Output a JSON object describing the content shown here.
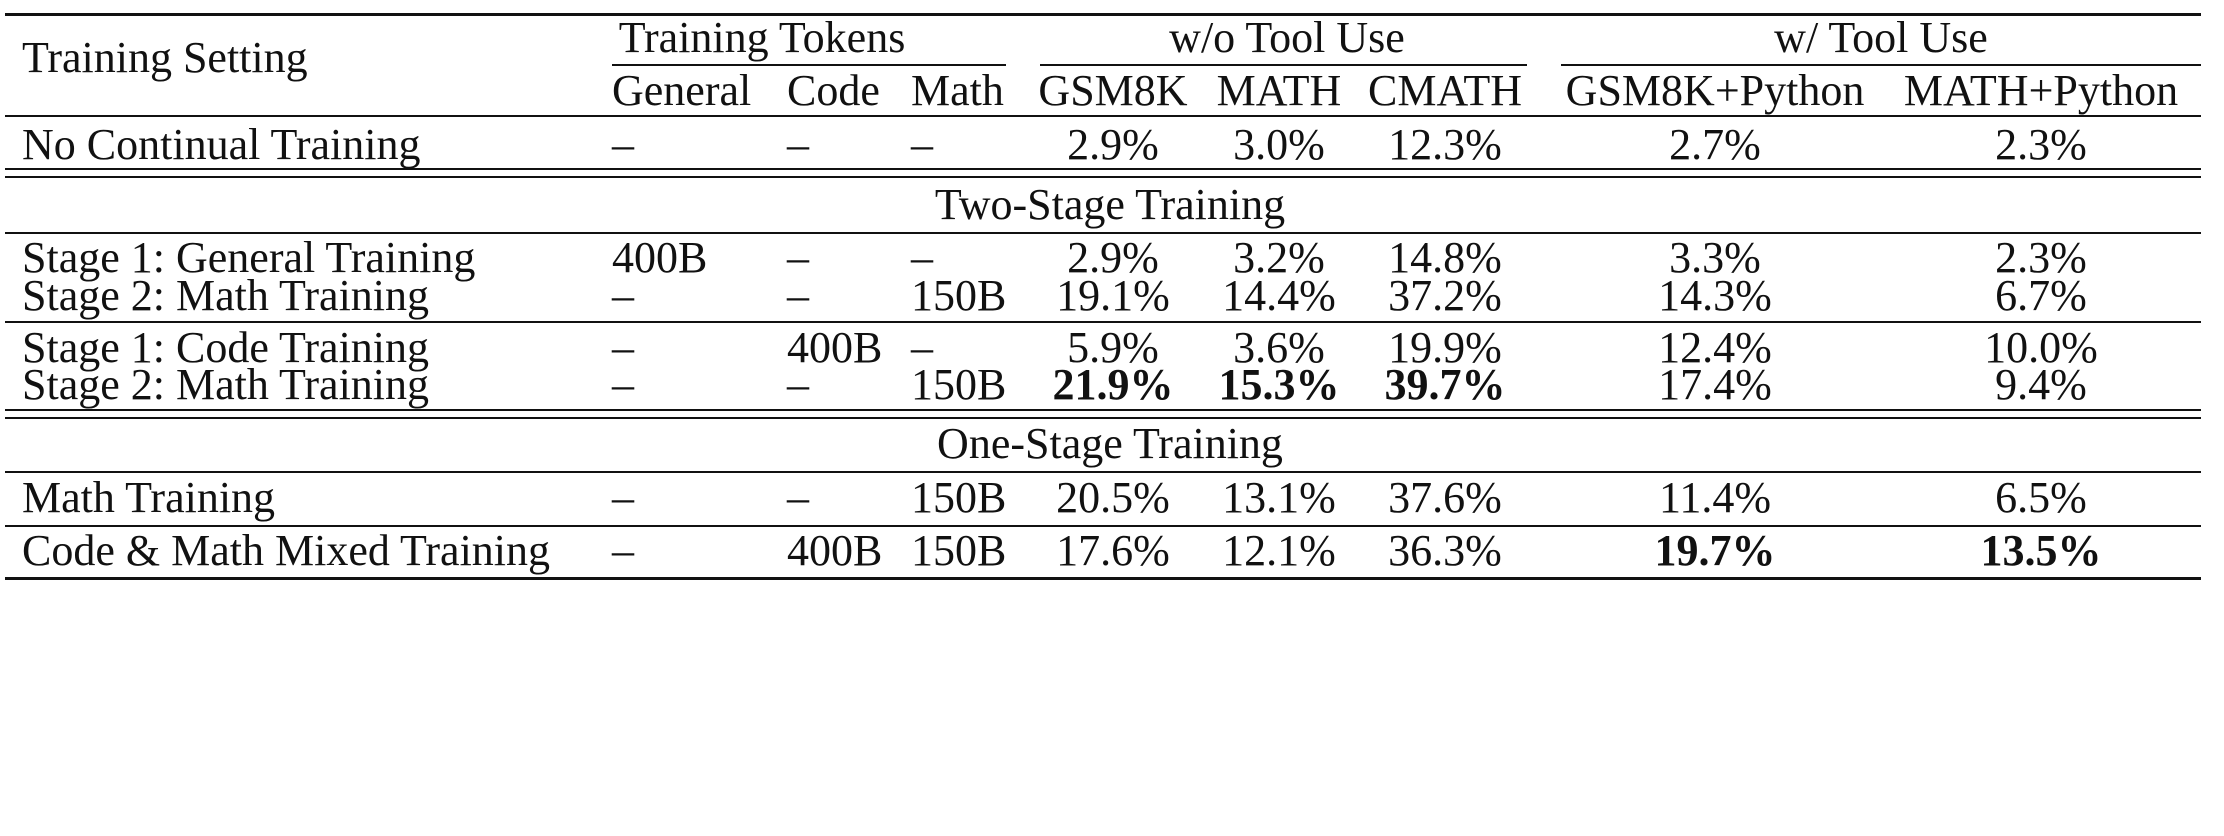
{
  "header": {
    "setting": "Training Setting",
    "groups": {
      "tokens": "Training Tokens",
      "wo_tool": "w/o Tool Use",
      "w_tool": "w/ Tool Use"
    },
    "cols": {
      "general": "General",
      "code": "Code",
      "math": "Math",
      "gsm8k": "GSM8K",
      "math_bench": "MATH",
      "cmath": "CMATH",
      "gsm8k_py": "GSM8K+Python",
      "math_py": "MATH+Python"
    }
  },
  "sections": {
    "two_stage": "Two-Stage Training",
    "one_stage": "One-Stage Training"
  },
  "rows": [
    {
      "setting": "No Continual Training",
      "general": "–",
      "code": "–",
      "math": "–",
      "gsm8k": "2.9%",
      "math_bench": "3.0%",
      "cmath": "12.3%",
      "gsm8k_py": "2.7%",
      "math_py": "2.3%"
    },
    {
      "setting": "Stage 1: General Training",
      "general": "400B",
      "code": "–",
      "math": "–",
      "gsm8k": "2.9%",
      "math_bench": "3.2%",
      "cmath": "14.8%",
      "gsm8k_py": "3.3%",
      "math_py": "2.3%"
    },
    {
      "setting": "Stage 2: Math Training",
      "general": "–",
      "code": "–",
      "math": "150B",
      "gsm8k": "19.1%",
      "math_bench": "14.4%",
      "cmath": "37.2%",
      "gsm8k_py": "14.3%",
      "math_py": "6.7%"
    },
    {
      "setting": "Stage 1: Code Training",
      "general": "–",
      "code": "400B",
      "math": "–",
      "gsm8k": "5.9%",
      "math_bench": "3.6%",
      "cmath": "19.9%",
      "gsm8k_py": "12.4%",
      "math_py": "10.0%"
    },
    {
      "setting": "Stage 2: Math Training",
      "general": "–",
      "code": "–",
      "math": "150B",
      "gsm8k": "21.9%",
      "math_bench": "15.3%",
      "cmath": "39.7%",
      "gsm8k_py": "17.4%",
      "math_py": "9.4%"
    },
    {
      "setting": "Math Training",
      "general": "–",
      "code": "–",
      "math": "150B",
      "gsm8k": "20.5%",
      "math_bench": "13.1%",
      "cmath": "37.6%",
      "gsm8k_py": "11.4%",
      "math_py": "6.5%"
    },
    {
      "setting": "Code & Math Mixed Training",
      "general": "–",
      "code": "400B",
      "math": "150B",
      "gsm8k": "17.6%",
      "math_bench": "12.1%",
      "cmath": "36.3%",
      "gsm8k_py": "19.7%",
      "math_py": "13.5%"
    }
  ]
}
